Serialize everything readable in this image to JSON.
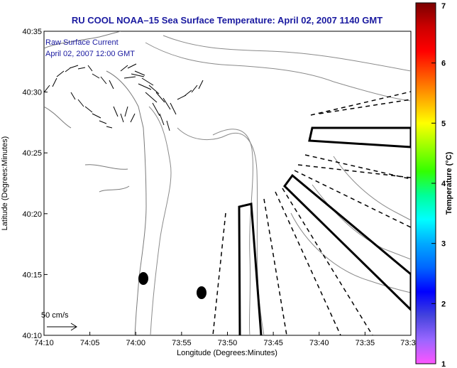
{
  "title": "RU COOL  NOAA–15  Sea Surface Temperature:  April 02, 2007 1140 GMT",
  "inset": {
    "line1": "Raw Surface Current",
    "line2": "April 02, 2007 12:00 GMT"
  },
  "axes": {
    "xlabel": "Longitude (Degrees:Minutes)",
    "ylabel": "Latitude (Degrees:Minutes)",
    "xticks": [
      "74:10",
      "74:05",
      "74:00",
      "73:55",
      "73:50",
      "73:45",
      "73:40",
      "73:35",
      "73:3"
    ],
    "yticks": [
      "40:35",
      "40:30",
      "40:25",
      "40:20",
      "40:15",
      "40:10"
    ]
  },
  "colorbar": {
    "label": "Temperature (°C)",
    "ticks": [
      "7",
      "6",
      "5",
      "4",
      "3",
      "2",
      "1"
    ],
    "range": [
      1,
      7
    ],
    "colors": [
      "#ff55ff",
      "#9966ff",
      "#4444dd",
      "#0000ff",
      "#0066ff",
      "#00aaff",
      "#00ffff",
      "#00ff99",
      "#33ff00",
      "#99ff00",
      "#ffff00",
      "#ffaa00",
      "#ff5500",
      "#ff0000",
      "#cc0000",
      "#7a0000"
    ]
  },
  "scale_arrow": {
    "label": "50 cm/s"
  }
}
